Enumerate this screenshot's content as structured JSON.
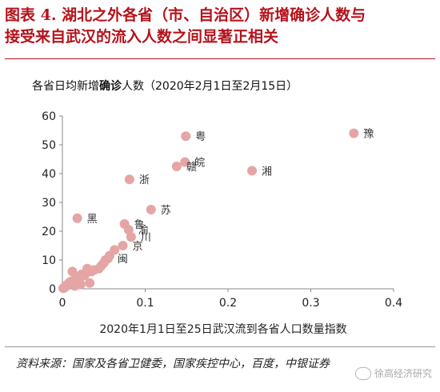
{
  "figure": {
    "title_line1": "图表 4. 湖北之外各省（市、自治区）新增确诊人数与",
    "title_line2": "接受来自武汉的流入人数之间显著正相关",
    "subtitle_prefix": "各省日均新增",
    "subtitle_bold": "确诊",
    "subtitle_suffix": "人数（2020年2月1日至2月15日）",
    "source": "资料来源：国家及各省卫健委，国家疾控中心，百度，中银证券",
    "watermark": "徐高经济研究"
  },
  "colors": {
    "title": "#b5121b",
    "marker": "#e5a5a5",
    "axis": "#888888",
    "text": "#222222"
  },
  "chart_data": {
    "type": "scatter",
    "title": "",
    "xlabel": "2020年1月1日至25日武汉流到各省人口数量指数",
    "ylabel": "",
    "xlim": [
      0,
      0.4
    ],
    "ylim": [
      0,
      60
    ],
    "xticks": [
      "0",
      "0.1",
      "0.2",
      "0.3",
      "0.4"
    ],
    "yticks": [
      "0",
      "10",
      "20",
      "30",
      "40",
      "50",
      "60"
    ],
    "grid": false,
    "points": [
      {
        "label": "豫",
        "x": 0.352,
        "y": 54
      },
      {
        "label": "粤",
        "x": 0.149,
        "y": 53
      },
      {
        "label": "浙",
        "x": 0.081,
        "y": 38
      },
      {
        "label": "湘",
        "x": 0.229,
        "y": 41
      },
      {
        "label": "皖",
        "x": 0.148,
        "y": 44
      },
      {
        "label": "赣",
        "x": 0.138,
        "y": 42.5
      },
      {
        "label": "苏",
        "x": 0.107,
        "y": 27.5
      },
      {
        "label": "黑",
        "x": 0.018,
        "y": 24.5
      },
      {
        "label": "鲁",
        "x": 0.075,
        "y": 22.5
      },
      {
        "label": "渝",
        "x": 0.08,
        "y": 20.5
      },
      {
        "label": "川",
        "x": 0.083,
        "y": 18
      },
      {
        "label": "京",
        "x": 0.073,
        "y": 15
      },
      {
        "label": "",
        "x": 0.063,
        "y": 13.5
      },
      {
        "label": "",
        "x": 0.057,
        "y": 11.5
      },
      {
        "label": "闽",
        "x": 0.055,
        "y": 10.5
      },
      {
        "label": "",
        "x": 0.052,
        "y": 10
      },
      {
        "label": "",
        "x": 0.05,
        "y": 9
      },
      {
        "label": "",
        "x": 0.047,
        "y": 8
      },
      {
        "label": "",
        "x": 0.044,
        "y": 7
      },
      {
        "label": "",
        "x": 0.038,
        "y": 6.5
      },
      {
        "label": "",
        "x": 0.035,
        "y": 6
      },
      {
        "label": "",
        "x": 0.03,
        "y": 7
      },
      {
        "label": "",
        "x": 0.028,
        "y": 5.5
      },
      {
        "label": "",
        "x": 0.025,
        "y": 4.5
      },
      {
        "label": "",
        "x": 0.023,
        "y": 5
      },
      {
        "label": "",
        "x": 0.02,
        "y": 4
      },
      {
        "label": "",
        "x": 0.017,
        "y": 3.5
      },
      {
        "label": "",
        "x": 0.014,
        "y": 3
      },
      {
        "label": "",
        "x": 0.012,
        "y": 6
      },
      {
        "label": "",
        "x": 0.01,
        "y": 2.5
      },
      {
        "label": "",
        "x": 0.008,
        "y": 2
      },
      {
        "label": "",
        "x": 0.006,
        "y": 1.5
      },
      {
        "label": "",
        "x": 0.004,
        "y": 1
      },
      {
        "label": "",
        "x": 0.003,
        "y": 0.5
      },
      {
        "label": "",
        "x": 0.002,
        "y": 0.3
      },
      {
        "label": "",
        "x": 0.001,
        "y": 0.2
      },
      {
        "label": "",
        "x": 0.027,
        "y": 4.8
      },
      {
        "label": "",
        "x": 0.033,
        "y": 2
      },
      {
        "label": "",
        "x": 0.022,
        "y": 1.5
      },
      {
        "label": "",
        "x": 0.015,
        "y": 1
      }
    ]
  }
}
